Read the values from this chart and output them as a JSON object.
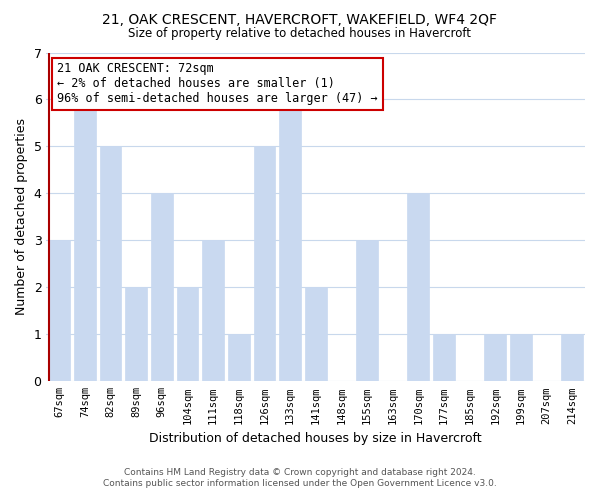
{
  "title": "21, OAK CRESCENT, HAVERCROFT, WAKEFIELD, WF4 2QF",
  "subtitle": "Size of property relative to detached houses in Havercroft",
  "xlabel": "Distribution of detached houses by size in Havercroft",
  "ylabel": "Number of detached properties",
  "categories": [
    "67sqm",
    "74sqm",
    "82sqm",
    "89sqm",
    "96sqm",
    "104sqm",
    "111sqm",
    "118sqm",
    "126sqm",
    "133sqm",
    "141sqm",
    "148sqm",
    "155sqm",
    "163sqm",
    "170sqm",
    "177sqm",
    "185sqm",
    "192sqm",
    "199sqm",
    "207sqm",
    "214sqm"
  ],
  "values": [
    3,
    6,
    5,
    2,
    4,
    2,
    3,
    1,
    5,
    6,
    2,
    0,
    3,
    0,
    4,
    1,
    0,
    1,
    1,
    0,
    1
  ],
  "bar_color": "#c9d9f0",
  "red_line_index": 0,
  "ylim": [
    0,
    7
  ],
  "yticks": [
    0,
    1,
    2,
    3,
    4,
    5,
    6,
    7
  ],
  "annotation_title": "21 OAK CRESCENT: 72sqm",
  "annotation_line1": "← 2% of detached houses are smaller (1)",
  "annotation_line2": "96% of semi-detached houses are larger (47) →",
  "footnote1": "Contains HM Land Registry data © Crown copyright and database right 2024.",
  "footnote2": "Contains public sector information licensed under the Open Government Licence v3.0.",
  "bg_color": "#ffffff",
  "grid_color": "#c8d8ec",
  "red_line_color": "#aa0000",
  "annotation_box_color": "#ffffff",
  "annotation_box_edge": "#cc0000"
}
